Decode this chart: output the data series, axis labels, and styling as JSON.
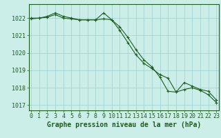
{
  "line1_x": [
    0,
    1,
    2,
    3,
    4,
    5,
    6,
    7,
    8,
    9,
    10,
    11,
    12,
    13,
    14,
    15,
    16,
    17,
    18,
    19,
    20,
    21,
    22,
    23
  ],
  "line1_y": [
    1022.0,
    1022.0,
    1022.1,
    1022.3,
    1022.1,
    1022.0,
    1021.9,
    1021.9,
    1021.9,
    1022.3,
    1021.9,
    1021.5,
    1020.9,
    1020.2,
    1019.6,
    1019.2,
    1018.6,
    1017.8,
    1017.75,
    1018.3,
    1018.1,
    1017.9,
    1017.8,
    1017.3
  ],
  "line2_x": [
    0,
    1,
    2,
    3,
    4,
    5,
    6,
    7,
    8,
    9,
    10,
    11,
    12,
    13,
    14,
    15,
    16,
    17,
    18,
    19,
    20,
    21,
    22,
    23
  ],
  "line2_y": [
    1021.95,
    1022.0,
    1022.05,
    1022.2,
    1022.0,
    1021.95,
    1021.9,
    1021.9,
    1021.9,
    1021.95,
    1021.9,
    1021.3,
    1020.6,
    1019.9,
    1019.4,
    1019.1,
    1018.75,
    1018.55,
    1017.75,
    1017.9,
    1018.0,
    1017.85,
    1017.6,
    1017.15
  ],
  "line_color": "#1e5c1e",
  "marker": "+",
  "bg_color": "#cceee8",
  "grid_color": "#9ecece",
  "xlabel": "Graphe pression niveau de la mer (hPa)",
  "ylim": [
    1016.7,
    1022.8
  ],
  "xlim": [
    -0.3,
    23.3
  ],
  "yticks": [
    1017,
    1018,
    1019,
    1020,
    1021,
    1022
  ],
  "xticks": [
    0,
    1,
    2,
    3,
    4,
    5,
    6,
    7,
    8,
    9,
    10,
    11,
    12,
    13,
    14,
    15,
    16,
    17,
    18,
    19,
    20,
    21,
    22,
    23
  ],
  "xlabel_fontsize": 7,
  "tick_fontsize": 6
}
